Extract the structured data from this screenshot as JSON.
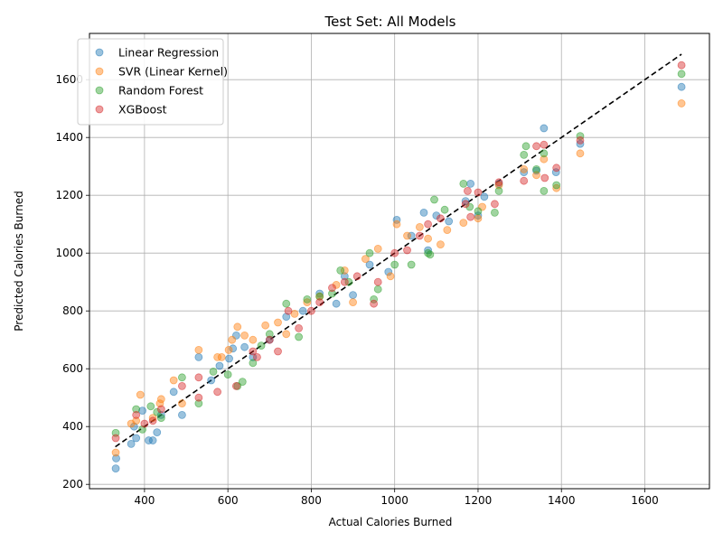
{
  "chart_data": {
    "type": "scatter",
    "title": "Test Set: All Models",
    "xlabel": "Actual Calories Burned",
    "ylabel": "Predicted Calories Burned",
    "xlim": [
      268,
      1755
    ],
    "ylim": [
      185,
      1760
    ],
    "xticks": [
      400,
      600,
      800,
      1000,
      1200,
      1400,
      1600
    ],
    "yticks": [
      200,
      400,
      600,
      800,
      1000,
      1200,
      1400,
      1600
    ],
    "grid": true,
    "legend_position": "upper-left",
    "reference_line": {
      "style": "dashed",
      "color": "#000000",
      "x": [
        330,
        1688
      ],
      "y": [
        330,
        1688
      ]
    },
    "series": [
      {
        "name": "Linear Regression",
        "color": "#1f77b4",
        "points": [
          [
            331,
            255
          ],
          [
            332,
            290
          ],
          [
            368,
            340
          ],
          [
            380,
            360
          ],
          [
            410,
            352
          ],
          [
            420,
            352
          ],
          [
            430,
            380
          ],
          [
            375,
            400
          ],
          [
            395,
            455
          ],
          [
            440,
            440
          ],
          [
            490,
            440
          ],
          [
            470,
            520
          ],
          [
            530,
            640
          ],
          [
            560,
            560
          ],
          [
            580,
            610
          ],
          [
            603,
            635
          ],
          [
            620,
            715
          ],
          [
            640,
            675
          ],
          [
            612,
            670
          ],
          [
            660,
            640
          ],
          [
            700,
            700
          ],
          [
            740,
            780
          ],
          [
            780,
            800
          ],
          [
            820,
            860
          ],
          [
            860,
            825
          ],
          [
            880,
            920
          ],
          [
            900,
            855
          ],
          [
            940,
            960
          ],
          [
            985,
            935
          ],
          [
            1005,
            1115
          ],
          [
            1040,
            1060
          ],
          [
            1070,
            1140
          ],
          [
            1080,
            1010
          ],
          [
            1100,
            1130
          ],
          [
            1130,
            1110
          ],
          [
            1170,
            1180
          ],
          [
            1182,
            1240
          ],
          [
            1200,
            1130
          ],
          [
            1215,
            1195
          ],
          [
            1250,
            1240
          ],
          [
            1310,
            1280
          ],
          [
            1340,
            1285
          ],
          [
            1358,
            1432
          ],
          [
            1387,
            1280
          ],
          [
            1445,
            1378
          ],
          [
            1688,
            1575
          ]
        ]
      },
      {
        "name": "SVR (Linear Kernel)",
        "color": "#ff7f0e",
        "points": [
          [
            331,
            310
          ],
          [
            368,
            410
          ],
          [
            390,
            510
          ],
          [
            380,
            420
          ],
          [
            420,
            430
          ],
          [
            437,
            480
          ],
          [
            440,
            495
          ],
          [
            470,
            560
          ],
          [
            490,
            480
          ],
          [
            530,
            665
          ],
          [
            575,
            640
          ],
          [
            585,
            640
          ],
          [
            602,
            665
          ],
          [
            610,
            700
          ],
          [
            623,
            745
          ],
          [
            640,
            715
          ],
          [
            660,
            700
          ],
          [
            690,
            750
          ],
          [
            720,
            760
          ],
          [
            740,
            720
          ],
          [
            760,
            790
          ],
          [
            790,
            830
          ],
          [
            820,
            850
          ],
          [
            860,
            890
          ],
          [
            880,
            940
          ],
          [
            900,
            830
          ],
          [
            930,
            980
          ],
          [
            960,
            1015
          ],
          [
            990,
            920
          ],
          [
            1005,
            1100
          ],
          [
            1030,
            1060
          ],
          [
            1060,
            1090
          ],
          [
            1080,
            1050
          ],
          [
            1110,
            1030
          ],
          [
            1126,
            1080
          ],
          [
            1165,
            1105
          ],
          [
            1200,
            1120
          ],
          [
            1210,
            1160
          ],
          [
            1250,
            1235
          ],
          [
            1310,
            1290
          ],
          [
            1340,
            1270
          ],
          [
            1358,
            1325
          ],
          [
            1388,
            1225
          ],
          [
            1445,
            1345
          ],
          [
            1688,
            1518
          ]
        ]
      },
      {
        "name": "Random Forest",
        "color": "#2ca02c",
        "points": [
          [
            331,
            378
          ],
          [
            380,
            460
          ],
          [
            395,
            390
          ],
          [
            415,
            470
          ],
          [
            430,
            450
          ],
          [
            440,
            430
          ],
          [
            490,
            570
          ],
          [
            530,
            480
          ],
          [
            565,
            590
          ],
          [
            600,
            580
          ],
          [
            623,
            540
          ],
          [
            635,
            555
          ],
          [
            660,
            620
          ],
          [
            680,
            680
          ],
          [
            700,
            720
          ],
          [
            740,
            825
          ],
          [
            770,
            710
          ],
          [
            790,
            840
          ],
          [
            820,
            850
          ],
          [
            850,
            860
          ],
          [
            870,
            940
          ],
          [
            890,
            900
          ],
          [
            940,
            1000
          ],
          [
            950,
            840
          ],
          [
            960,
            875
          ],
          [
            1000,
            960
          ],
          [
            1040,
            960
          ],
          [
            1080,
            1000
          ],
          [
            1085,
            995
          ],
          [
            1095,
            1185
          ],
          [
            1120,
            1150
          ],
          [
            1165,
            1240
          ],
          [
            1180,
            1160
          ],
          [
            1200,
            1145
          ],
          [
            1240,
            1140
          ],
          [
            1250,
            1215
          ],
          [
            1310,
            1340
          ],
          [
            1315,
            1370
          ],
          [
            1340,
            1290
          ],
          [
            1358,
            1345
          ],
          [
            1358,
            1215
          ],
          [
            1388,
            1235
          ],
          [
            1445,
            1405
          ],
          [
            1688,
            1620
          ]
        ]
      },
      {
        "name": "XGBoost",
        "color": "#d62728",
        "points": [
          [
            331,
            360
          ],
          [
            380,
            440
          ],
          [
            400,
            410
          ],
          [
            420,
            420
          ],
          [
            440,
            460
          ],
          [
            490,
            540
          ],
          [
            530,
            500
          ],
          [
            530,
            570
          ],
          [
            575,
            520
          ],
          [
            620,
            540
          ],
          [
            660,
            660
          ],
          [
            670,
            640
          ],
          [
            700,
            700
          ],
          [
            720,
            660
          ],
          [
            745,
            800
          ],
          [
            770,
            740
          ],
          [
            800,
            800
          ],
          [
            820,
            830
          ],
          [
            850,
            880
          ],
          [
            880,
            900
          ],
          [
            910,
            920
          ],
          [
            950,
            825
          ],
          [
            960,
            900
          ],
          [
            1000,
            1000
          ],
          [
            1030,
            1010
          ],
          [
            1060,
            1060
          ],
          [
            1080,
            1100
          ],
          [
            1110,
            1120
          ],
          [
            1170,
            1170
          ],
          [
            1175,
            1215
          ],
          [
            1182,
            1125
          ],
          [
            1200,
            1210
          ],
          [
            1240,
            1170
          ],
          [
            1250,
            1245
          ],
          [
            1310,
            1250
          ],
          [
            1340,
            1370
          ],
          [
            1358,
            1375
          ],
          [
            1360,
            1260
          ],
          [
            1388,
            1295
          ],
          [
            1445,
            1390
          ],
          [
            1688,
            1650
          ]
        ]
      }
    ]
  }
}
